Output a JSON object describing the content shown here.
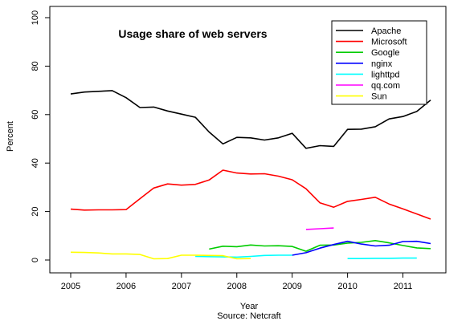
{
  "chart_data": {
    "type": "line",
    "title": "Usage share of web servers",
    "xlabel": "Year",
    "ylabel": "Percent",
    "caption": "Source:  Netcraft",
    "xlim": [
      2005,
      2011.5
    ],
    "ylim": [
      0,
      100
    ],
    "x_ticks": [
      "2005",
      "2006",
      "2007",
      "2008",
      "2009",
      "2010",
      "2011"
    ],
    "y_ticks": [
      "0",
      "20",
      "40",
      "60",
      "80",
      "100"
    ],
    "legend_position": "top-right",
    "grid": false,
    "series": [
      {
        "name": "Apache",
        "color": "#000000",
        "points": [
          [
            2005.0,
            68.5
          ],
          [
            2005.25,
            69.3
          ],
          [
            2005.5,
            69.6
          ],
          [
            2005.75,
            69.9
          ],
          [
            2006.0,
            67.0
          ],
          [
            2006.25,
            62.9
          ],
          [
            2006.5,
            63.1
          ],
          [
            2006.75,
            61.5
          ],
          [
            2007.0,
            60.2
          ],
          [
            2007.25,
            58.9
          ],
          [
            2007.5,
            52.8
          ],
          [
            2007.75,
            47.9
          ],
          [
            2008.0,
            50.6
          ],
          [
            2008.25,
            50.4
          ],
          [
            2008.5,
            49.5
          ],
          [
            2008.75,
            50.4
          ],
          [
            2009.0,
            52.3
          ],
          [
            2009.25,
            46.1
          ],
          [
            2009.5,
            47.2
          ],
          [
            2009.75,
            46.9
          ],
          [
            2010.0,
            53.9
          ],
          [
            2010.25,
            54.0
          ],
          [
            2010.5,
            55.0
          ],
          [
            2010.75,
            58.2
          ],
          [
            2011.0,
            59.2
          ],
          [
            2011.25,
            61.3
          ],
          [
            2011.5,
            66.0
          ]
        ]
      },
      {
        "name": "Microsoft",
        "color": "#ff0000",
        "points": [
          [
            2005.0,
            21.0
          ],
          [
            2005.25,
            20.6
          ],
          [
            2005.5,
            20.7
          ],
          [
            2005.75,
            20.7
          ],
          [
            2006.0,
            20.8
          ],
          [
            2006.25,
            25.3
          ],
          [
            2006.5,
            29.7
          ],
          [
            2006.75,
            31.4
          ],
          [
            2007.0,
            30.9
          ],
          [
            2007.25,
            31.2
          ],
          [
            2007.5,
            33.0
          ],
          [
            2007.75,
            37.1
          ],
          [
            2008.0,
            35.9
          ],
          [
            2008.25,
            35.5
          ],
          [
            2008.5,
            35.6
          ],
          [
            2008.75,
            34.6
          ],
          [
            2009.0,
            33.1
          ],
          [
            2009.25,
            29.4
          ],
          [
            2009.5,
            23.6
          ],
          [
            2009.75,
            21.8
          ],
          [
            2010.0,
            24.2
          ],
          [
            2010.25,
            25.0
          ],
          [
            2010.5,
            25.9
          ],
          [
            2010.75,
            23.1
          ],
          [
            2011.0,
            21.1
          ],
          [
            2011.25,
            19.0
          ],
          [
            2011.5,
            16.9
          ]
        ]
      },
      {
        "name": "Google",
        "color": "#00cc00",
        "points": [
          [
            2007.5,
            4.5
          ],
          [
            2007.75,
            5.7
          ],
          [
            2008.0,
            5.5
          ],
          [
            2008.25,
            6.2
          ],
          [
            2008.5,
            5.8
          ],
          [
            2008.75,
            5.9
          ],
          [
            2009.0,
            5.6
          ],
          [
            2009.25,
            3.6
          ],
          [
            2009.5,
            6.1
          ],
          [
            2009.75,
            6.2
          ],
          [
            2010.0,
            7.0
          ],
          [
            2010.25,
            7.3
          ],
          [
            2010.5,
            8.0
          ],
          [
            2010.75,
            7.1
          ],
          [
            2011.0,
            6.0
          ],
          [
            2011.25,
            5.0
          ],
          [
            2011.5,
            4.7
          ]
        ]
      },
      {
        "name": "nginx",
        "color": "#0000ff",
        "points": [
          [
            2009.0,
            2.0
          ],
          [
            2009.25,
            3.0
          ],
          [
            2009.5,
            4.9
          ],
          [
            2009.75,
            6.4
          ],
          [
            2010.0,
            7.7
          ],
          [
            2010.25,
            6.6
          ],
          [
            2010.5,
            5.8
          ],
          [
            2010.75,
            6.1
          ],
          [
            2011.0,
            7.6
          ],
          [
            2011.25,
            7.7
          ],
          [
            2011.5,
            6.8
          ]
        ]
      },
      {
        "name": "lighttpd",
        "color": "#00ffff",
        "points": [
          [
            2007.25,
            1.5
          ],
          [
            2007.5,
            1.4
          ],
          [
            2007.75,
            1.3
          ],
          [
            2008.0,
            1.2
          ],
          [
            2008.25,
            1.5
          ],
          [
            2008.5,
            1.9
          ],
          [
            2008.75,
            2.0
          ],
          [
            2009.0,
            2.0
          ],
          [
            2010.0,
            0.6
          ],
          [
            2010.25,
            0.6
          ],
          [
            2010.5,
            0.7
          ],
          [
            2010.75,
            0.7
          ],
          [
            2011.0,
            0.8
          ],
          [
            2011.25,
            0.8
          ]
        ]
      },
      {
        "name": "qq.com",
        "color": "#ff00ff",
        "points": [
          [
            2009.25,
            12.6
          ],
          [
            2009.5,
            12.9
          ],
          [
            2009.75,
            13.2
          ]
        ]
      },
      {
        "name": "Sun",
        "color": "#ffff00",
        "points": [
          [
            2005.0,
            3.2
          ],
          [
            2005.25,
            3.1
          ],
          [
            2005.5,
            2.9
          ],
          [
            2005.75,
            2.5
          ],
          [
            2006.0,
            2.5
          ],
          [
            2006.25,
            2.3
          ],
          [
            2006.5,
            0.5
          ],
          [
            2006.75,
            0.6
          ],
          [
            2007.0,
            2.0
          ],
          [
            2007.25,
            2.0
          ],
          [
            2007.5,
            1.9
          ],
          [
            2007.75,
            1.8
          ],
          [
            2008.0,
            0.5
          ],
          [
            2008.25,
            0.6
          ]
        ]
      }
    ]
  }
}
